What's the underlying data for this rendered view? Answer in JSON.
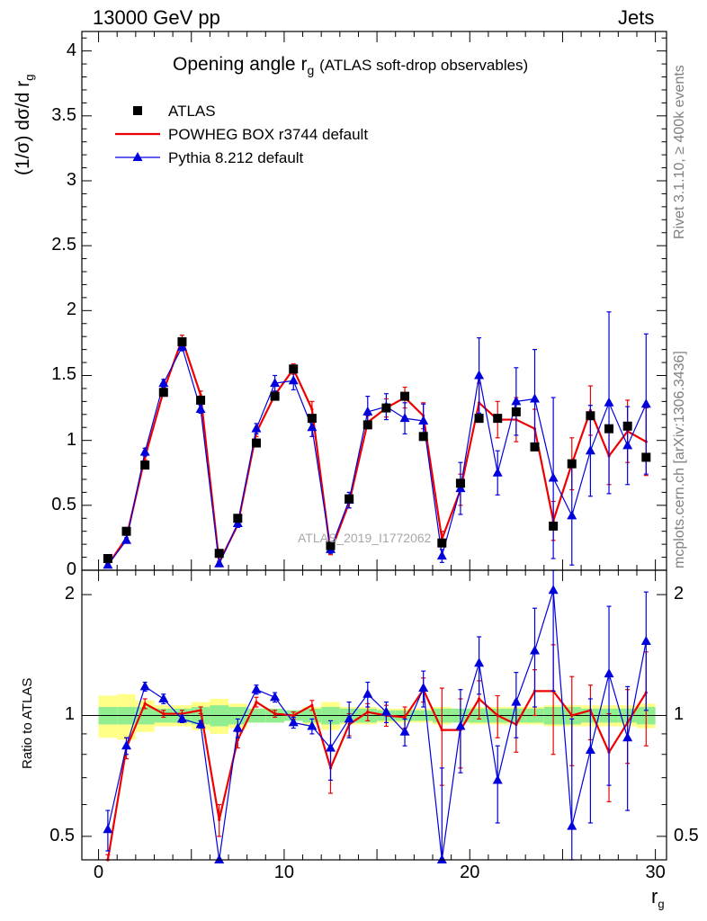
{
  "header": {
    "left": "13000 GeV pp",
    "right": "Jets"
  },
  "side": {
    "rivet": "Rivet 3.1.10, ≥ 400k events",
    "mcplots": "mcplots.cern.ch [arXiv:1306.3436]"
  },
  "plot_title": {
    "main": "Opening angle r",
    "sub": "g",
    "paren": "(ATLAS soft-drop observables)"
  },
  "ylabel_top": "(1/σ) dσ/d r",
  "ylabel_top_sub": "g",
  "ylabel_bottom": "Ratio to ATLAS",
  "xlabel": "r",
  "xlabel_sub": "g",
  "watermark": "ATLAS_2019_I1772062",
  "colors": {
    "data": "#000000",
    "powheg": "#ee0000",
    "pythia": "#0000dd",
    "band_inner": "#90ee90",
    "band_outer": "#ffff88"
  },
  "chart_data": {
    "type": "line",
    "x": [
      0.5,
      1.5,
      2.5,
      3.5,
      4.5,
      5.5,
      6.5,
      7.5,
      8.5,
      9.5,
      10.5,
      11.5,
      12.5,
      13.5,
      14.5,
      15.5,
      16.5,
      17.5,
      18.5,
      19.5,
      20.5,
      21.5,
      22.5,
      23.5,
      24.5,
      25.5,
      26.5,
      27.5,
      28.5,
      29.5
    ],
    "xlim": [
      -0.9,
      30.6
    ],
    "xticks": [
      0,
      10,
      20,
      30
    ],
    "main_ylim": [
      0,
      4.15
    ],
    "main_yticks": [
      "0",
      "0.5",
      "1",
      "1.5",
      "2",
      "2.5",
      "3",
      "3.5",
      "4"
    ],
    "ratio_ylim": [
      0.437,
      2.3
    ],
    "ratio_yticks": [
      "0.5",
      "1",
      "2"
    ],
    "series": [
      {
        "name": "ATLAS",
        "kind": "data",
        "values": [
          0.09,
          0.3,
          0.81,
          1.37,
          1.76,
          1.31,
          0.13,
          0.4,
          0.98,
          1.34,
          1.55,
          1.17,
          0.19,
          0.55,
          1.12,
          1.25,
          1.34,
          1.03,
          0.21,
          0.67,
          1.17,
          1.17,
          1.22,
          0.95,
          0.34,
          0.82,
          1.19,
          1.09,
          1.11,
          0.87
        ],
        "ratio_band_inner": [
          0.05,
          0.05,
          0.05,
          0.04,
          0.04,
          0.05,
          0.06,
          0.05,
          0.04,
          0.04,
          0.03,
          0.04,
          0.05,
          0.04,
          0.04,
          0.03,
          0.03,
          0.03,
          0.04,
          0.04,
          0.04,
          0.04,
          0.04,
          0.04,
          0.05,
          0.05,
          0.04,
          0.04,
          0.04,
          0.05
        ],
        "ratio_band_outer": [
          0.12,
          0.13,
          0.09,
          0.06,
          0.06,
          0.08,
          0.1,
          0.07,
          0.04,
          0.04,
          0.03,
          0.05,
          0.08,
          0.05,
          0.05,
          0.04,
          0.04,
          0.04,
          0.05,
          0.04,
          0.05,
          0.05,
          0.05,
          0.05,
          0.06,
          0.06,
          0.06,
          0.06,
          0.06,
          0.07
        ]
      },
      {
        "name": "POWHEG BOX r3744 default",
        "kind": "line",
        "values": [
          0.04,
          0.25,
          0.87,
          1.38,
          1.78,
          1.35,
          0.06,
          0.35,
          1.06,
          1.35,
          1.55,
          1.24,
          0.14,
          0.52,
          1.14,
          1.25,
          1.33,
          1.19,
          0.24,
          0.62,
          1.29,
          1.16,
          1.16,
          1.09,
          0.38,
          0.82,
          1.23,
          0.88,
          1.07,
          0.99
        ],
        "errors": [
          0.01,
          0.02,
          0.02,
          0.02,
          0.03,
          0.03,
          0.01,
          0.02,
          0.03,
          0.03,
          0.04,
          0.06,
          0.02,
          0.04,
          0.05,
          0.07,
          0.08,
          0.1,
          0.06,
          0.12,
          0.15,
          0.14,
          0.17,
          0.15,
          0.15,
          0.2,
          0.19,
          0.22,
          0.24,
          0.26
        ],
        "ratio": [
          0.41,
          0.83,
          1.07,
          1.01,
          1.01,
          1.03,
          0.55,
          0.87,
          1.08,
          1.01,
          1.0,
          1.06,
          0.74,
          0.95,
          1.02,
          1.0,
          0.99,
          1.16,
          0.92,
          0.92,
          1.1,
          1.0,
          0.95,
          1.15,
          1.15,
          1.0,
          1.03,
          0.81,
          0.96,
          1.14
        ],
        "ratio_errors": [
          0.04,
          0.05,
          0.03,
          0.02,
          0.02,
          0.02,
          0.05,
          0.04,
          0.03,
          0.02,
          0.02,
          0.03,
          0.1,
          0.06,
          0.05,
          0.06,
          0.06,
          0.08,
          0.25,
          0.18,
          0.12,
          0.12,
          0.14,
          0.15,
          0.35,
          0.25,
          0.16,
          0.2,
          0.2,
          0.3
        ]
      },
      {
        "name": "Pythia 8.212 default",
        "kind": "line",
        "values": [
          0.04,
          0.23,
          0.91,
          1.44,
          1.72,
          1.24,
          0.05,
          0.36,
          1.09,
          1.44,
          1.46,
          1.1,
          0.16,
          0.54,
          1.22,
          1.26,
          1.17,
          1.15,
          0.11,
          0.63,
          1.5,
          0.75,
          1.3,
          1.32,
          0.71,
          0.42,
          0.92,
          1.29,
          0.96,
          1.28
        ],
        "errors": [
          0.01,
          0.02,
          0.03,
          0.03,
          0.03,
          0.03,
          0.01,
          0.03,
          0.04,
          0.06,
          0.07,
          0.07,
          0.03,
          0.06,
          0.12,
          0.1,
          0.12,
          0.13,
          0.05,
          0.2,
          0.29,
          0.17,
          0.26,
          0.38,
          0.62,
          0.38,
          0.35,
          0.7,
          0.3,
          0.54
        ],
        "ratio": [
          0.52,
          0.84,
          1.18,
          1.1,
          0.98,
          0.95,
          0.37,
          0.93,
          1.16,
          1.11,
          0.96,
          0.94,
          0.83,
          0.98,
          1.13,
          1.02,
          0.91,
          1.17,
          0.39,
          0.94,
          1.35,
          0.69,
          1.08,
          1.45,
          2.05,
          0.53,
          0.82,
          1.27,
          0.88,
          1.53
        ],
        "ratio_errors": [
          0.06,
          0.04,
          0.03,
          0.03,
          0.02,
          0.02,
          0.05,
          0.05,
          0.03,
          0.03,
          0.03,
          0.04,
          0.14,
          0.1,
          0.08,
          0.06,
          0.07,
          0.12,
          0.35,
          0.22,
          0.22,
          0.15,
          0.2,
          0.4,
          0.9,
          0.45,
          0.28,
          0.6,
          0.3,
          0.5
        ]
      }
    ]
  }
}
